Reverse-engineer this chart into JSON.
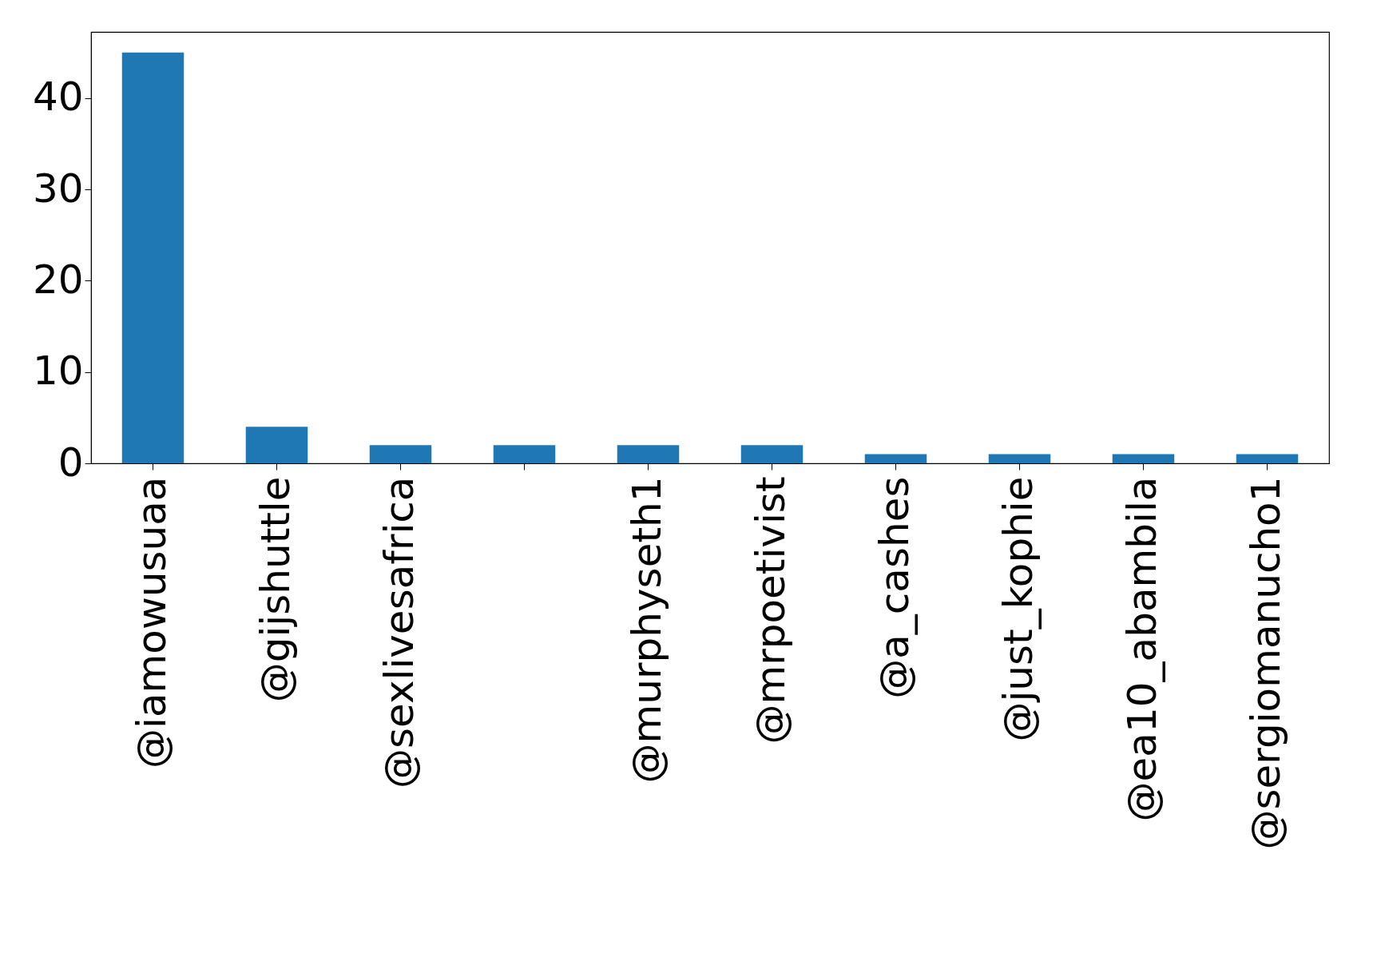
{
  "chart_data": {
    "type": "bar",
    "categories": [
      "@iamowusuaa",
      "@gijshuttle",
      "@sexlivesafrica",
      null,
      "@murphyseth1",
      "@mrpoetivist",
      "@a_cashes",
      "@just_kophie",
      "@ea10_abambila",
      "@sergiomanucho1"
    ],
    "values": [
      45,
      4,
      2,
      2,
      2,
      2,
      1,
      1,
      1,
      1
    ],
    "color": "#1f77b4",
    "ylim": [
      0,
      47.25
    ],
    "yticks": [
      0,
      10,
      20,
      30,
      40
    ],
    "grid": false
  }
}
